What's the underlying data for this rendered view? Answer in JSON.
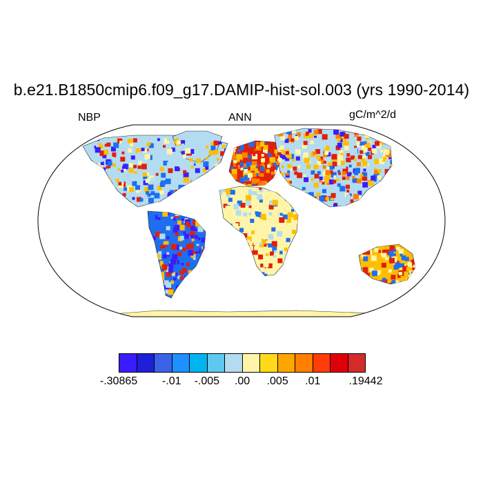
{
  "title": "b.e21.B1850cmip6.f09_g17.DAMIP-hist-sol.003 (yrs 1990-2014)",
  "left_string": "NBP",
  "center_string": "ANN",
  "right_string": "gC/m^2/d",
  "map": {
    "projection": "Robinson",
    "variable": "NBP",
    "season": "ANN",
    "land_colors": {
      "strong_negative": "#3a1dff",
      "negative": "#1e6ff0",
      "near_zero_neg": "#b4dcf0",
      "near_zero_pos": "#fff5a8",
      "positive": "#ffbf00",
      "strong_positive": "#e0200c"
    },
    "ocean_color": "#ffffff",
    "antarctica_color": "#fff5a8"
  },
  "colorbar": {
    "colors": [
      "#3a1dff",
      "#1f1fd9",
      "#3b63e8",
      "#1e90ff",
      "#00b4f0",
      "#5ec8ee",
      "#b4dcf0",
      "#fff5a8",
      "#ffd91a",
      "#ffa500",
      "#ff7f00",
      "#ff3c0a",
      "#e0000a",
      "#d42a2a"
    ],
    "labels": [
      {
        "text": "-.30865",
        "boundary": 0
      },
      {
        "text": "-.01",
        "boundary": 3
      },
      {
        "text": "-.005",
        "boundary": 5
      },
      {
        "text": ".00",
        "boundary": 7
      },
      {
        "text": ".005",
        "boundary": 9
      },
      {
        "text": ".01",
        "boundary": 11
      },
      {
        "text": ".19442",
        "boundary": 14
      }
    ]
  }
}
